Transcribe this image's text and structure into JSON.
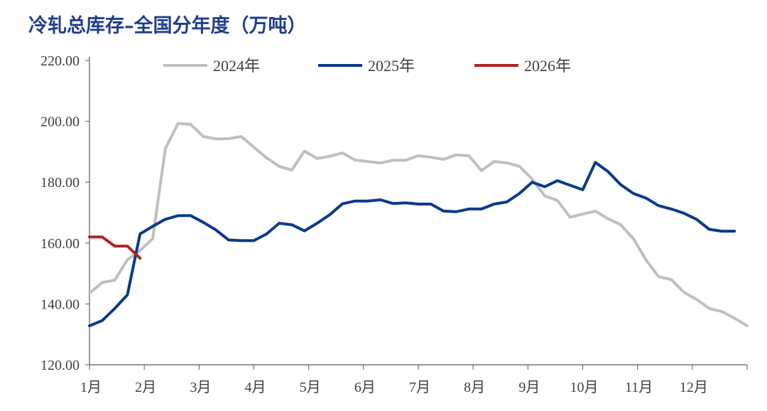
{
  "chart_data": {
    "type": "line",
    "title": "冷轧总库存–全国分年度（万吨）",
    "xlabel": "",
    "ylabel": "",
    "ylim": [
      120,
      220
    ],
    "yticks": [
      "120.00",
      "140.00",
      "160.00",
      "180.00",
      "200.00",
      "220.00"
    ],
    "xticks": [
      "1月",
      "2月",
      "3月",
      "4月",
      "5月",
      "6月",
      "7月",
      "8月",
      "9月",
      "10月",
      "11月",
      "12月"
    ],
    "x_week_range": [
      1,
      53
    ],
    "legend_position": "top",
    "grid": false,
    "series": [
      {
        "name": "2024年",
        "color": "#bfbfbf",
        "x": [
          1,
          2,
          3,
          4,
          5,
          6,
          7,
          8,
          9,
          10,
          11,
          12,
          13,
          14,
          15,
          16,
          17,
          18,
          19,
          20,
          21,
          22,
          23,
          24,
          25,
          26,
          27,
          28,
          29,
          30,
          31,
          32,
          33,
          34,
          35,
          36,
          37,
          38,
          39,
          40,
          41,
          42,
          43,
          44,
          45,
          46,
          47,
          48,
          49,
          50,
          51,
          52,
          53
        ],
        "values": [
          143.5,
          147.0,
          147.8,
          154.5,
          157.5,
          161.5,
          191.0,
          199.3,
          199.0,
          195.0,
          194.2,
          194.3,
          195.0,
          191.5,
          188.0,
          185.2,
          184.0,
          190.2,
          187.8,
          188.5,
          189.6,
          187.3,
          186.8,
          186.3,
          187.2,
          187.2,
          188.7,
          188.2,
          187.5,
          189.0,
          188.7,
          183.8,
          186.8,
          186.3,
          185.2,
          181.0,
          175.5,
          174.0,
          168.5,
          169.5,
          170.5,
          168.0,
          166.0,
          161.5,
          154.5,
          149.0,
          148.0,
          143.8,
          141.5,
          138.5,
          137.5,
          135.3,
          132.8
        ]
      },
      {
        "name": "2025年",
        "color": "#0a3a8c",
        "x": [
          1,
          2,
          3,
          4,
          5,
          6,
          7,
          8,
          9,
          10,
          11,
          12,
          13,
          14,
          15,
          16,
          17,
          18,
          19,
          20,
          21,
          22,
          23,
          24,
          25,
          26,
          27,
          28,
          29,
          30,
          31,
          32,
          33,
          34,
          35,
          36,
          37,
          38,
          39,
          40,
          41,
          42,
          43,
          44,
          45,
          46,
          47,
          48,
          49,
          50,
          51,
          52
        ],
        "values": [
          132.8,
          134.5,
          138.5,
          143.0,
          163.0,
          165.5,
          167.8,
          169.0,
          169.0,
          166.8,
          164.3,
          161.0,
          160.8,
          160.8,
          163.0,
          166.5,
          166.0,
          164.0,
          166.5,
          169.3,
          172.9,
          173.8,
          173.8,
          174.2,
          173.0,
          173.2,
          172.8,
          172.8,
          170.5,
          170.3,
          171.2,
          171.2,
          172.8,
          173.5,
          176.3,
          180.0,
          178.5,
          180.5,
          179.0,
          177.5,
          186.5,
          183.5,
          179.2,
          176.3,
          174.8,
          172.3,
          171.2,
          169.8,
          167.8,
          164.5,
          163.9,
          163.9
        ]
      },
      {
        "name": "2026年",
        "color": "#b22222",
        "x": [
          1,
          2,
          3,
          4,
          5,
          6
        ],
        "values": [
          162.0,
          162.0,
          159.0,
          159.0,
          155.0,
          null
        ]
      }
    ]
  }
}
